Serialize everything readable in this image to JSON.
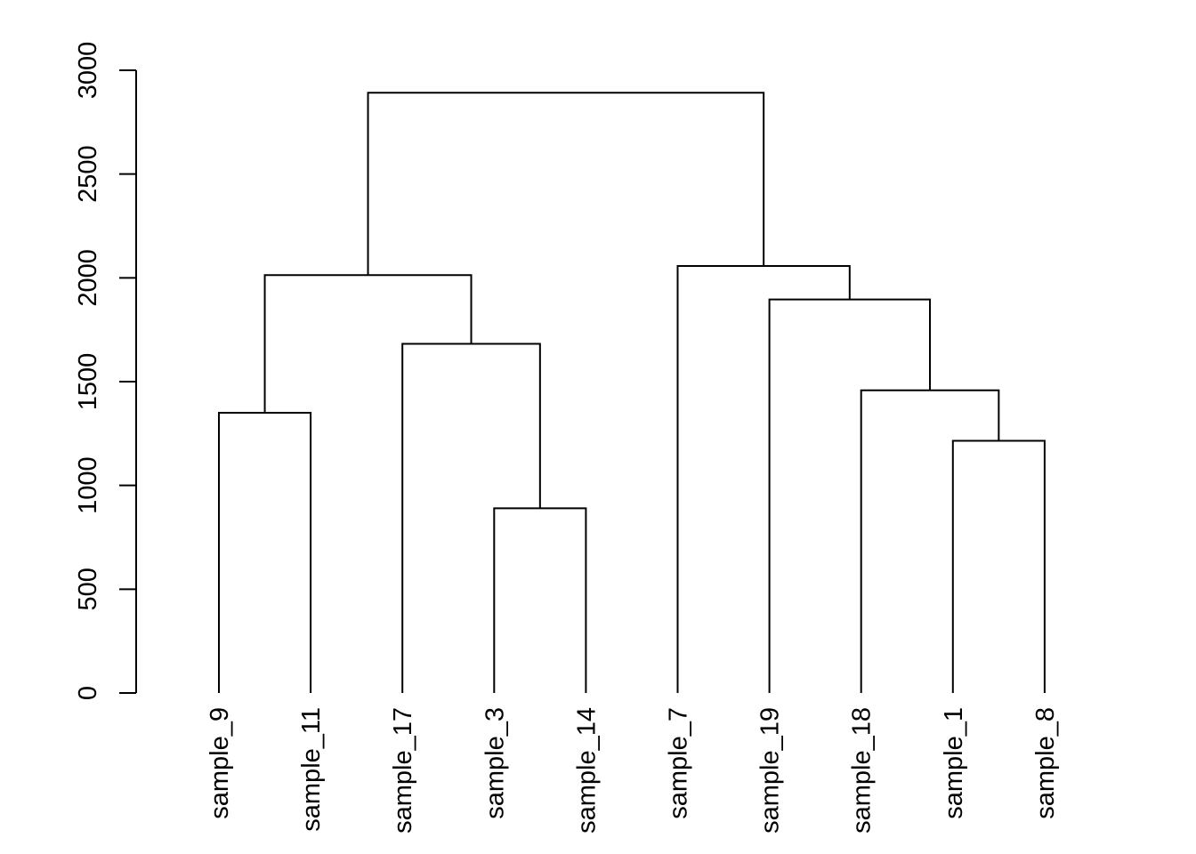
{
  "chart_data": {
    "type": "dendrogram",
    "ylim": [
      0,
      3000
    ],
    "y_ticks": [
      0,
      500,
      1000,
      1500,
      2000,
      2500,
      3000
    ],
    "y_tick_labels": [
      "0",
      "500",
      "1000",
      "1500",
      "2000",
      "2500",
      "3000"
    ],
    "leaves": [
      "sample_9",
      "sample_11",
      "sample_17",
      "sample_3",
      "sample_14",
      "sample_7",
      "sample_19",
      "sample_18",
      "sample_1",
      "sample_8"
    ],
    "merges": [
      {
        "left": "sample_3",
        "right": "sample_14",
        "height": 890
      },
      {
        "left": "sample_1",
        "right": "sample_8",
        "height": 1215
      },
      {
        "left": "sample_9",
        "right": "sample_11",
        "height": 1350
      },
      {
        "left": "sample_18",
        "right": "sample_1+sample_8",
        "height": 1458
      },
      {
        "left": "sample_17",
        "right": "sample_3+sample_14",
        "height": 1682
      },
      {
        "left": "sample_19",
        "right": "sample_18+sample_1+sample_8",
        "height": 1896
      },
      {
        "left": "sample_9+sample_11",
        "right": "sample_17+sample_3+sample_14",
        "height": 2013
      },
      {
        "left": "sample_7",
        "right": "sample_19+sample_18+sample_1+sample_8",
        "height": 2057
      },
      {
        "left": "sample_9+sample_11+sample_17+sample_3+sample_14",
        "right": "sample_7+sample_19+sample_18+sample_1+sample_8",
        "height": 2892
      }
    ],
    "line_color": "#000000",
    "background": "#ffffff"
  }
}
